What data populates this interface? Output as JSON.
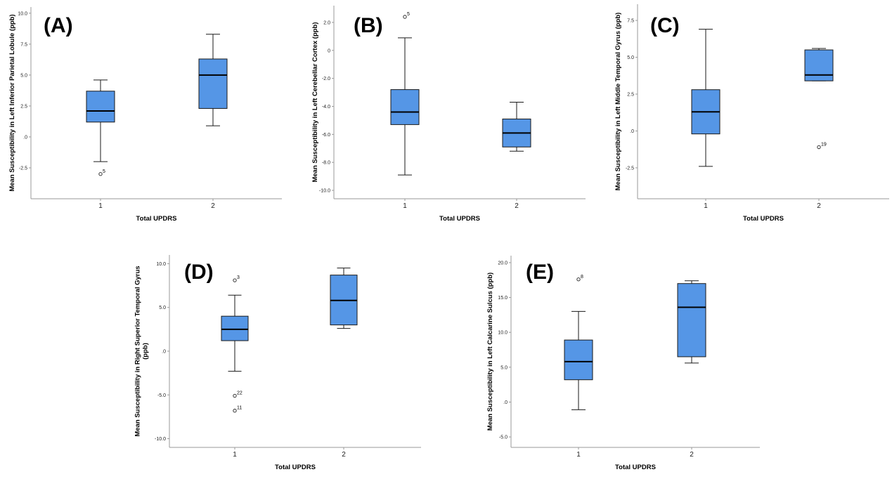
{
  "chart_data": [
    {
      "type": "boxplot",
      "panel_label": "(A)",
      "xlabel": "Total UPDRS",
      "ylabel_lines": [
        "Mean Susceptibility in Left Inferior Parietal Lobule (ppb)"
      ],
      "ylim": [
        -5.0,
        10.5
      ],
      "yticks": [
        -2.5,
        0,
        2.5,
        5.0,
        7.5,
        10.0
      ],
      "ytick_labels": [
        "-2.5",
        ".0",
        "2.5",
        "5.0",
        "7.5",
        "10.0"
      ],
      "categories": [
        "1",
        "2"
      ],
      "boxes": [
        {
          "min": -2.0,
          "q1": 1.2,
          "median": 2.1,
          "q3": 3.7,
          "max": 4.6,
          "outliers": [
            {
              "value": -3.0,
              "label": "5"
            }
          ]
        },
        {
          "min": 0.9,
          "q1": 2.3,
          "median": 5.0,
          "q3": 6.3,
          "max": 8.3,
          "outliers": []
        }
      ]
    },
    {
      "type": "boxplot",
      "panel_label": "(B)",
      "xlabel": "Total UPDRS",
      "ylabel_lines": [
        "Mean Susceptibility in Left Cerebellar Cortex (ppb)"
      ],
      "ylim": [
        -10.6,
        3.2
      ],
      "yticks": [
        -10.0,
        -8.0,
        -6.0,
        -4.0,
        -2.0,
        0,
        2.0
      ],
      "ytick_labels": [
        "-10.0",
        "-8.0",
        "-6.0",
        "-4.0",
        "-2.0",
        "0",
        "2.0"
      ],
      "categories": [
        "1",
        "2"
      ],
      "boxes": [
        {
          "min": -8.9,
          "q1": -5.3,
          "median": -4.4,
          "q3": -2.8,
          "max": 0.9,
          "outliers": [
            {
              "value": 2.4,
              "label": "5"
            }
          ]
        },
        {
          "min": -7.2,
          "q1": -6.9,
          "median": -5.9,
          "q3": -4.9,
          "max": -3.7,
          "outliers": []
        }
      ]
    },
    {
      "type": "boxplot",
      "panel_label": "(C)",
      "xlabel": "Total UPDRS",
      "ylabel_lines": [
        "Mean Susceptibility in Left Middle Temporal Gyrus (ppb)"
      ],
      "ylim": [
        -4.6,
        8.6
      ],
      "yticks": [
        -2.5,
        0,
        2.5,
        5.0,
        7.5
      ],
      "ytick_labels": [
        "-2.5",
        ".0",
        "2.5",
        "5.0",
        "7.5"
      ],
      "categories": [
        "1",
        "2"
      ],
      "boxes": [
        {
          "min": -2.4,
          "q1": -0.2,
          "median": 1.3,
          "q3": 2.8,
          "max": 6.9,
          "outliers": []
        },
        {
          "min": 3.4,
          "q1": 3.4,
          "median": 3.8,
          "q3": 5.5,
          "max": 5.6,
          "outliers": [
            {
              "value": -1.1,
              "label": "19"
            }
          ]
        }
      ]
    },
    {
      "type": "boxplot",
      "panel_label": "(D)",
      "xlabel": "Total UPDRS",
      "ylabel_lines": [
        "Mean Susceptibility in Right Superior Temporal Gyrus",
        "(ppb)"
      ],
      "ylim": [
        -11.0,
        11.0
      ],
      "yticks": [
        -10.0,
        -5.0,
        0,
        5.0,
        10.0
      ],
      "ytick_labels": [
        "-10.0",
        "-5.0",
        ".0",
        "5.0",
        "10.0"
      ],
      "categories": [
        "1",
        "2"
      ],
      "boxes": [
        {
          "min": -2.3,
          "q1": 1.2,
          "median": 2.5,
          "q3": 4.0,
          "max": 6.4,
          "outliers": [
            {
              "value": 8.1,
              "label": "3"
            },
            {
              "value": -5.1,
              "label": "22"
            },
            {
              "value": -6.8,
              "label": "11"
            }
          ]
        },
        {
          "min": 2.6,
          "q1": 3.0,
          "median": 5.8,
          "q3": 8.7,
          "max": 9.5,
          "outliers": []
        }
      ]
    },
    {
      "type": "boxplot",
      "panel_label": "(E)",
      "xlabel": "Total UPDRS",
      "ylabel_lines": [
        "Mean Susceptibility in Left Calcarine Sulcus (ppb)"
      ],
      "ylim": [
        -6.5,
        21.0
      ],
      "yticks": [
        -5.0,
        0,
        5.0,
        10.0,
        15.0,
        20.0
      ],
      "ytick_labels": [
        "-5.0",
        ".0",
        "5.0",
        "10.0",
        "15.0",
        "20.0"
      ],
      "categories": [
        "1",
        "2"
      ],
      "boxes": [
        {
          "min": -1.1,
          "q1": 3.2,
          "median": 5.8,
          "q3": 8.9,
          "max": 13.0,
          "outliers": [
            {
              "value": 17.6,
              "label": "8"
            }
          ]
        },
        {
          "min": 5.6,
          "q1": 6.5,
          "median": 13.6,
          "q3": 17.0,
          "max": 17.4,
          "outliers": []
        }
      ]
    }
  ],
  "colors": {
    "box_fill": "#5596e6",
    "box_stroke": "#1a1a1a",
    "axis": "#9a9a9a",
    "median": "#000000"
  }
}
